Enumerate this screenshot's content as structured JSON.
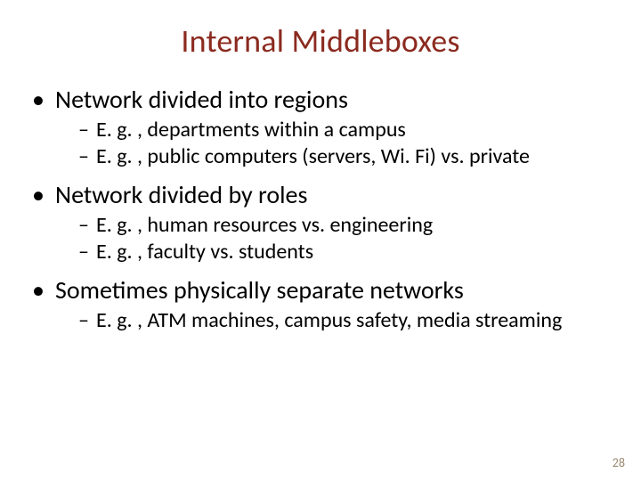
{
  "title": {
    "text": "Internal Middleboxes",
    "color": "#8b2a1f",
    "fontsize": 36
  },
  "body_color": "#000000",
  "lvl1_fontsize": 28,
  "lvl2_fontsize": 24,
  "background_color": "#ffffff",
  "bullets": [
    {
      "text": "Network divided into regions",
      "sub": [
        "E. g. , departments within a campus",
        "E. g. , public computers (servers, Wi. Fi) vs. private"
      ]
    },
    {
      "text": "Network divided by roles",
      "sub": [
        "E. g. , human resources vs. engineering",
        "E. g. , faculty vs. students"
      ]
    },
    {
      "text": "Sometimes physically separate networks",
      "sub": [
        "E. g. , ATM machines, campus safety, media streaming"
      ]
    }
  ],
  "page_number": {
    "value": "28",
    "color": "#9b8770",
    "fontsize": 14
  }
}
